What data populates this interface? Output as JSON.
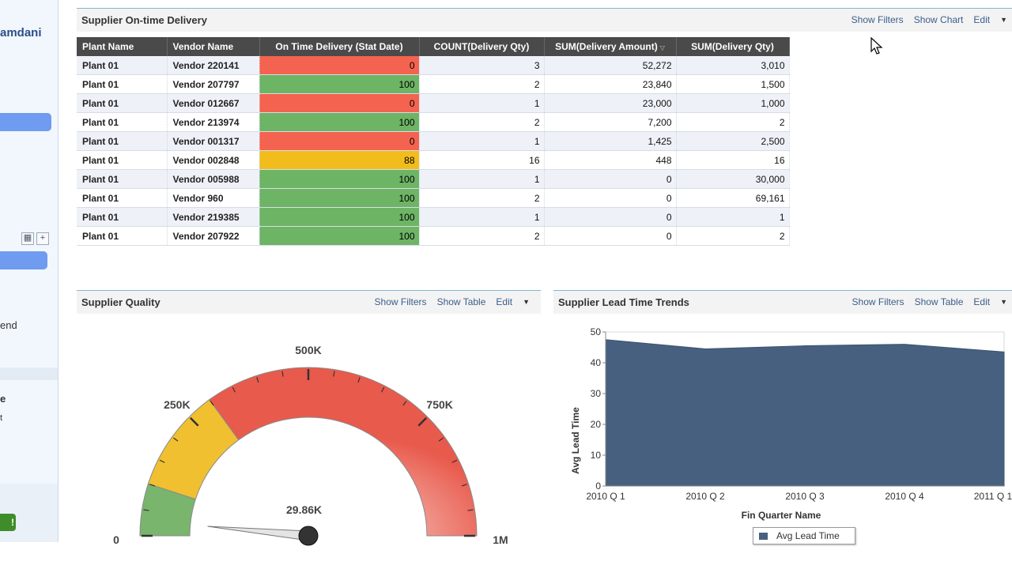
{
  "sidebar": {
    "user_name": "amdani",
    "text_end": "end",
    "text_e": "e",
    "text_t": "t",
    "green_button_label": "!",
    "add_icon": "plus-icon",
    "table_icon": "table-icon"
  },
  "delivery_panel": {
    "title": "Supplier On-time Delivery",
    "actions": {
      "show_filters": "Show Filters",
      "show_chart": "Show Chart",
      "edit": "Edit"
    },
    "columns": [
      "Plant Name",
      "Vendor Name",
      "On Time Delivery (Stat Date)",
      "COUNT(Delivery Qty)",
      "SUM(Delivery Amount)",
      "SUM(Delivery Qty)"
    ],
    "sort_indicator": "▽",
    "rows": [
      {
        "plant": "Plant 01",
        "vendor": "Vendor 220141",
        "otd": "0",
        "status": "red",
        "count": "3",
        "amount": "52,272",
        "qty": "3,010"
      },
      {
        "plant": "Plant 01",
        "vendor": "Vendor 207797",
        "otd": "100",
        "status": "green",
        "count": "2",
        "amount": "23,840",
        "qty": "1,500"
      },
      {
        "plant": "Plant 01",
        "vendor": "Vendor 012667",
        "otd": "0",
        "status": "red",
        "count": "1",
        "amount": "23,000",
        "qty": "1,000"
      },
      {
        "plant": "Plant 01",
        "vendor": "Vendor 213974",
        "otd": "100",
        "status": "green",
        "count": "2",
        "amount": "7,200",
        "qty": "2"
      },
      {
        "plant": "Plant 01",
        "vendor": "Vendor 001317",
        "otd": "0",
        "status": "red",
        "count": "1",
        "amount": "1,425",
        "qty": "2,500"
      },
      {
        "plant": "Plant 01",
        "vendor": "Vendor 002848",
        "otd": "88",
        "status": "yellow",
        "count": "16",
        "amount": "448",
        "qty": "16"
      },
      {
        "plant": "Plant 01",
        "vendor": "Vendor 005988",
        "otd": "100",
        "status": "green",
        "count": "1",
        "amount": "0",
        "qty": "30,000"
      },
      {
        "plant": "Plant 01",
        "vendor": "Vendor 960",
        "otd": "100",
        "status": "green",
        "count": "2",
        "amount": "0",
        "qty": "69,161"
      },
      {
        "plant": "Plant 01",
        "vendor": "Vendor 219385",
        "otd": "100",
        "status": "green",
        "count": "1",
        "amount": "0",
        "qty": "1"
      },
      {
        "plant": "Plant 01",
        "vendor": "Vendor 207922",
        "otd": "100",
        "status": "green",
        "count": "2",
        "amount": "0",
        "qty": "2"
      }
    ],
    "status_colors": {
      "red": "#f4634f",
      "green": "#6db465",
      "yellow": "#f2bd1c"
    }
  },
  "quality_panel": {
    "title": "Supplier Quality",
    "actions": {
      "show_filters": "Show Filters",
      "show_table": "Show Table",
      "edit": "Edit"
    }
  },
  "lead_panel": {
    "title": "Supplier Lead Time Trends",
    "actions": {
      "show_filters": "Show Filters",
      "show_table": "Show Table",
      "edit": "Edit"
    }
  },
  "chart_data": [
    {
      "type": "gauge",
      "title": "Supplier Quality",
      "min": 0,
      "max": 1000000,
      "value": 29860,
      "value_label": "29.86K",
      "tick_labels": [
        {
          "value": 0,
          "label": "0"
        },
        {
          "value": 250000,
          "label": "250K"
        },
        {
          "value": 500000,
          "label": "500K"
        },
        {
          "value": 750000,
          "label": "750K"
        },
        {
          "value": 1000000,
          "label": "1M"
        }
      ],
      "bands": [
        {
          "from": 0,
          "to": 100000,
          "color": "#79b56c"
        },
        {
          "from": 100000,
          "to": 300000,
          "color": "#f0c030"
        },
        {
          "from": 300000,
          "to": 1000000,
          "color": "#ee6b5c"
        }
      ]
    },
    {
      "type": "area",
      "title": "Supplier Lead Time Trends",
      "categories": [
        "2010 Q 1",
        "2010 Q 2",
        "2010 Q 3",
        "2010 Q 4",
        "2011 Q 1"
      ],
      "series": [
        {
          "name": "Avg Lead Time",
          "values": [
            47.5,
            44.5,
            45.5,
            46,
            43.5
          ],
          "color": "#47607f"
        }
      ],
      "ylim": [
        0,
        50
      ],
      "yticks": [
        0,
        10,
        20,
        30,
        40,
        50
      ],
      "xlabel": "Fin Quarter Name",
      "ylabel": "Avg Lead Time",
      "legend": "bottom"
    }
  ]
}
